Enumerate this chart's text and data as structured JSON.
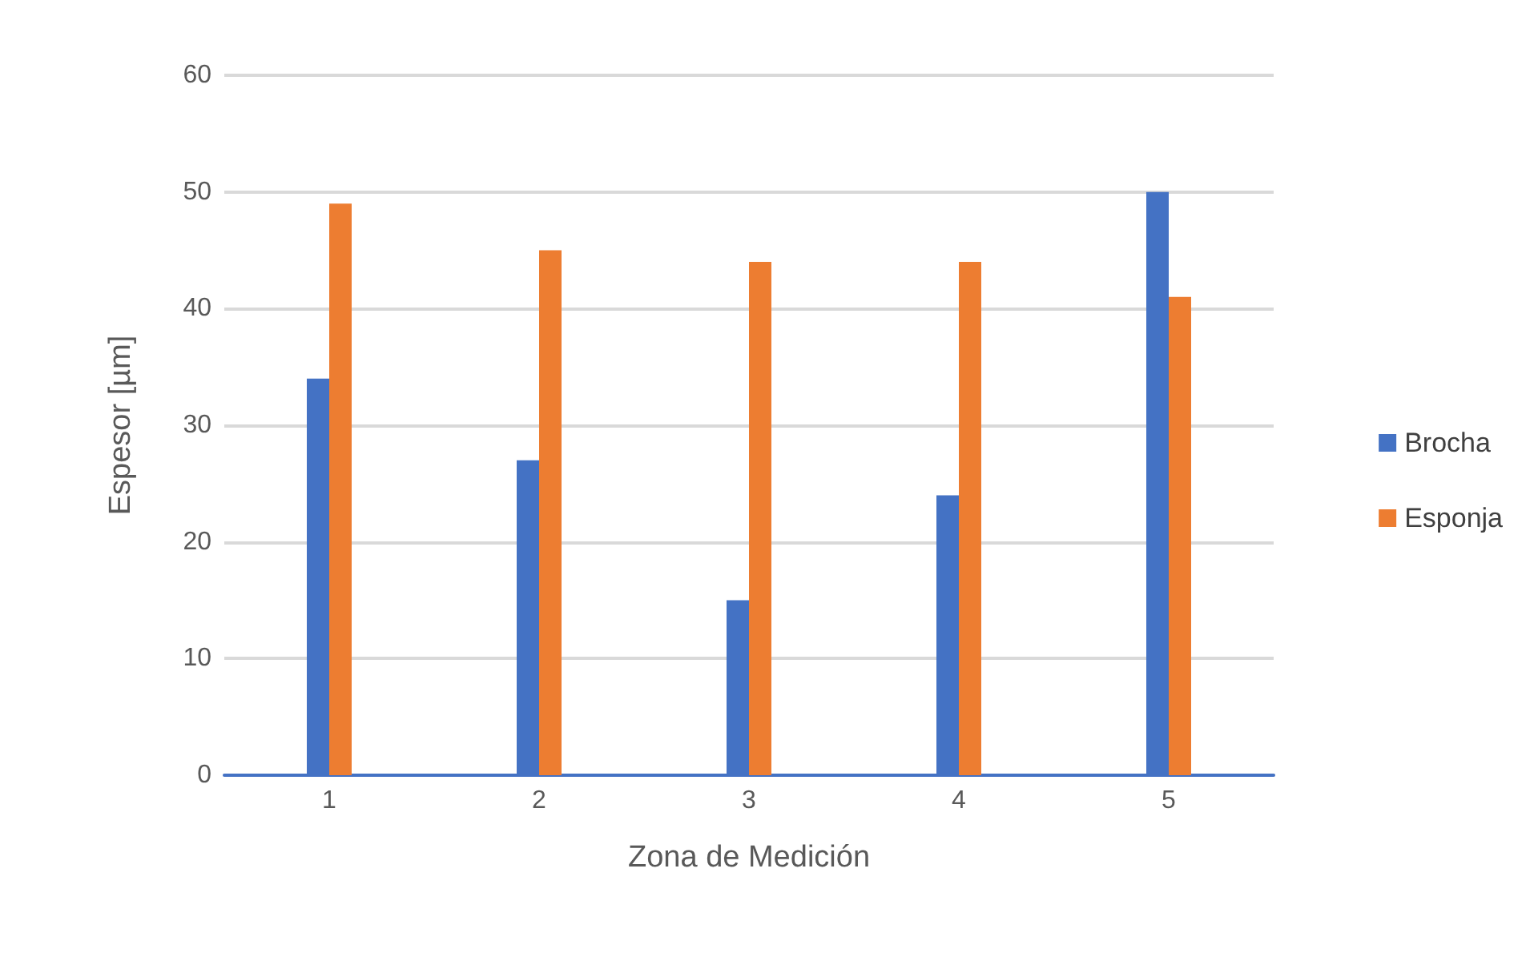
{
  "chart_data": {
    "type": "bar",
    "xlabel": "Zona de Medición",
    "ylabel": "Espesor [µm]",
    "categories": [
      "1",
      "2",
      "3",
      "4",
      "5"
    ],
    "series": [
      {
        "name": "Brocha",
        "color": "#4472c4",
        "values": [
          34,
          27,
          15,
          24,
          50
        ]
      },
      {
        "name": "Esponja",
        "color": "#ed7d31",
        "values": [
          49,
          45,
          44,
          44,
          41
        ]
      }
    ],
    "ylim": [
      0,
      60
    ],
    "yticks": [
      0,
      10,
      20,
      30,
      40,
      50,
      60
    ],
    "grid": "y",
    "legend": "right"
  }
}
